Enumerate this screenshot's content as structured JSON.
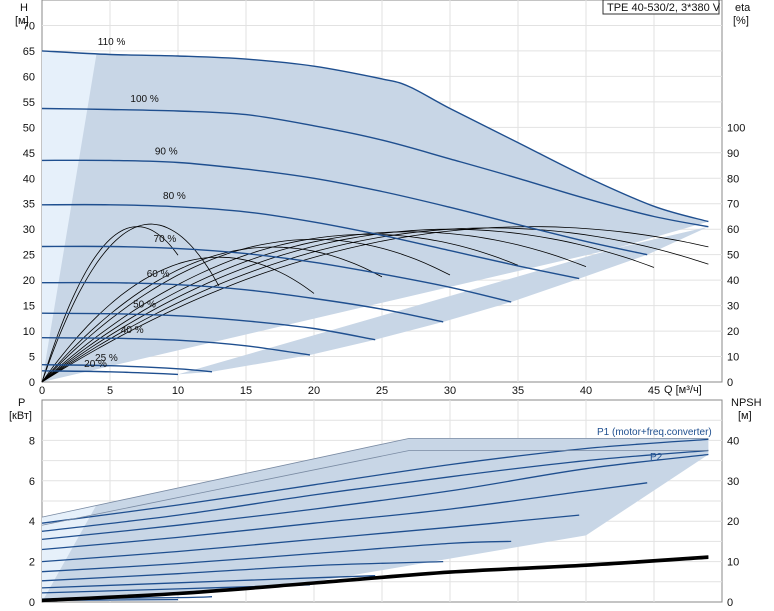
{
  "chart_data": [
    {
      "type": "line",
      "title": "TPE 40-530/2, 3*380 V",
      "left_axis": {
        "label": "H",
        "unit": "[м]",
        "ylim": [
          0,
          75
        ],
        "ticks": [
          "0",
          "5",
          "10",
          "15",
          "20",
          "25",
          "30",
          "35",
          "40",
          "45",
          "50",
          "55",
          "60",
          "65",
          "70"
        ]
      },
      "right_axis": {
        "label": "eta",
        "unit": "[%]",
        "ylim": [
          0,
          150
        ],
        "ticks": [
          "0",
          "10",
          "20",
          "30",
          "40",
          "50",
          "60",
          "70",
          "80",
          "90",
          "100"
        ]
      },
      "x_axis": {
        "label": "Q [м³/ч]",
        "xlim": [
          0,
          50
        ],
        "ticks": [
          "0",
          "5",
          "10",
          "15",
          "20",
          "25",
          "30",
          "35",
          "40",
          "45"
        ]
      },
      "grid": true,
      "colors": {
        "envelope": "#c8d6e6",
        "envelope_light": "#e6f0fa",
        "curve": "#1f4f8f",
        "efficiency": "#000000"
      },
      "series": [
        {
          "name": "110 %",
          "x": [
            0,
            5,
            10,
            15,
            20,
            25,
            27,
            30,
            35,
            40,
            45,
            49
          ],
          "y": [
            65,
            64.3,
            64,
            63.4,
            62,
            59.5,
            58,
            53.7,
            47,
            40.3,
            34.5,
            31.5
          ]
        },
        {
          "name": "100 %",
          "x": [
            0,
            5,
            10,
            15,
            20,
            25,
            30,
            35,
            40,
            45,
            49
          ],
          "y": [
            53.7,
            53.5,
            53.2,
            52.5,
            50.3,
            47.5,
            43.8,
            40,
            36,
            32.5,
            30.5
          ]
        },
        {
          "name": "90 %",
          "x": [
            0,
            5,
            10,
            15,
            20,
            25,
            30,
            35,
            40,
            44.5
          ],
          "y": [
            43.5,
            43.5,
            43.1,
            41.8,
            40,
            37.4,
            34.3,
            30.9,
            27.6,
            25
          ]
        },
        {
          "name": "80 %",
          "x": [
            0,
            5,
            10,
            15,
            20,
            25,
            30,
            35,
            39.5
          ],
          "y": [
            34.8,
            34.8,
            34.4,
            33.4,
            31.4,
            28.8,
            25.8,
            22.8,
            20.3
          ]
        },
        {
          "name": "70 %",
          "x": [
            0,
            5,
            10,
            15,
            20,
            25,
            30,
            34.5
          ],
          "y": [
            26.6,
            26.6,
            26.2,
            25.2,
            23.5,
            21.2,
            18.6,
            15.7
          ]
        },
        {
          "name": "60 %",
          "x": [
            0,
            5,
            10,
            15,
            20,
            25,
            29.5
          ],
          "y": [
            19.5,
            19.5,
            19.1,
            18.1,
            16.4,
            14.3,
            11.8
          ]
        },
        {
          "name": "50 %",
          "x": [
            0,
            5,
            10,
            15,
            20,
            24.5
          ],
          "y": [
            13.5,
            13.4,
            13,
            12,
            10.5,
            8.3
          ]
        },
        {
          "name": "40 %",
          "x": [
            0,
            5,
            10,
            15,
            19.7
          ],
          "y": [
            8.7,
            8.6,
            8.2,
            7.1,
            5.3
          ]
        },
        {
          "name": "25 %",
          "x": [
            0,
            5,
            10,
            12.5
          ],
          "y": [
            3.4,
            3.2,
            2.6,
            2
          ]
        },
        {
          "name": "20 %",
          "x": [
            0,
            5,
            10
          ],
          "y": [
            2.2,
            2,
            1.5
          ]
        }
      ],
      "efficiency_curves": [
        {
          "x_end": 49,
          "peak_x": 36,
          "peak": 61
        },
        {
          "x_end": 49,
          "peak_x": 33,
          "peak": 60.5
        },
        {
          "x_end": 45,
          "peak_x": 30,
          "peak": 60
        },
        {
          "x_end": 40,
          "peak_x": 27,
          "peak": 59
        },
        {
          "x_end": 35,
          "peak_x": 24,
          "peak": 58
        },
        {
          "x_end": 30,
          "peak_x": 20,
          "peak": 56
        },
        {
          "x_end": 25,
          "peak_x": 17,
          "peak": 53
        },
        {
          "x_end": 20,
          "peak_x": 13,
          "peak": 49
        },
        {
          "x_end": 13,
          "peak_x": 8,
          "peak": 62
        },
        {
          "x_end": 10,
          "peak_x": 7,
          "peak": 61
        }
      ]
    },
    {
      "type": "line",
      "left_axis": {
        "label": "P",
        "unit": "[кВт]",
        "ylim": [
          0,
          10
        ],
        "ticks": [
          "0",
          "2",
          "4",
          "6",
          "8"
        ]
      },
      "right_axis": {
        "label": "NPSH",
        "unit": "[м]",
        "ylim": [
          0,
          50
        ],
        "ticks": [
          "0",
          "10",
          "20",
          "30",
          "40"
        ]
      },
      "x_axis": {
        "xlim": [
          0,
          50
        ]
      },
      "grid": true,
      "labels": {
        "p1": "P1 (motor+freq.converter)",
        "p2": "P2"
      },
      "power_envelope": {
        "x": [
          0,
          27,
          49
        ],
        "y": [
          4.2,
          8.1,
          8.1
        ]
      },
      "series": [
        {
          "name": "P1 110 %",
          "x": [
            0,
            10,
            20,
            30,
            40,
            49
          ],
          "y": [
            3.9,
            4.8,
            5.8,
            6.8,
            7.6,
            8.05
          ]
        },
        {
          "name": "P2 110 %",
          "x": [
            0,
            10,
            20,
            30,
            40,
            49
          ],
          "y": [
            3.5,
            4.3,
            5.3,
            6.2,
            7.0,
            7.5
          ]
        },
        {
          "name": "100 %",
          "x": [
            0,
            10,
            20,
            30,
            40,
            49
          ],
          "y": [
            3.1,
            3.8,
            4.6,
            5.5,
            6.6,
            7.3
          ]
        },
        {
          "name": "90 %",
          "x": [
            0,
            10,
            20,
            30,
            40,
            44.5
          ],
          "y": [
            2.6,
            3.2,
            3.9,
            4.6,
            5.5,
            5.9
          ]
        },
        {
          "name": "80 %",
          "x": [
            0,
            10,
            20,
            30,
            39.5
          ],
          "y": [
            2.0,
            2.5,
            3.1,
            3.7,
            4.3
          ]
        },
        {
          "name": "70 %",
          "x": [
            0,
            10,
            20,
            30,
            34.5
          ],
          "y": [
            1.5,
            1.9,
            2.4,
            2.9,
            3.0
          ]
        },
        {
          "name": "60 %",
          "x": [
            0,
            10,
            20,
            29.5
          ],
          "y": [
            1.05,
            1.4,
            1.8,
            2.0
          ]
        },
        {
          "name": "50 %",
          "x": [
            0,
            10,
            20,
            24.5
          ],
          "y": [
            0.7,
            0.95,
            1.2,
            1.3
          ]
        },
        {
          "name": "40 %",
          "x": [
            0,
            10,
            19.7
          ],
          "y": [
            0.45,
            0.65,
            0.85
          ]
        },
        {
          "name": "25 %",
          "x": [
            0,
            10,
            12.5
          ],
          "y": [
            0.15,
            0.22,
            0.26
          ]
        },
        {
          "name": "20 %",
          "x": [
            0,
            10
          ],
          "y": [
            0.08,
            0.12
          ]
        }
      ],
      "npsh": {
        "x": [
          0,
          10,
          20,
          30,
          40,
          49
        ],
        "y": [
          0.3,
          2.0,
          4.6,
          7.3,
          9.0,
          11.0
        ]
      }
    }
  ]
}
